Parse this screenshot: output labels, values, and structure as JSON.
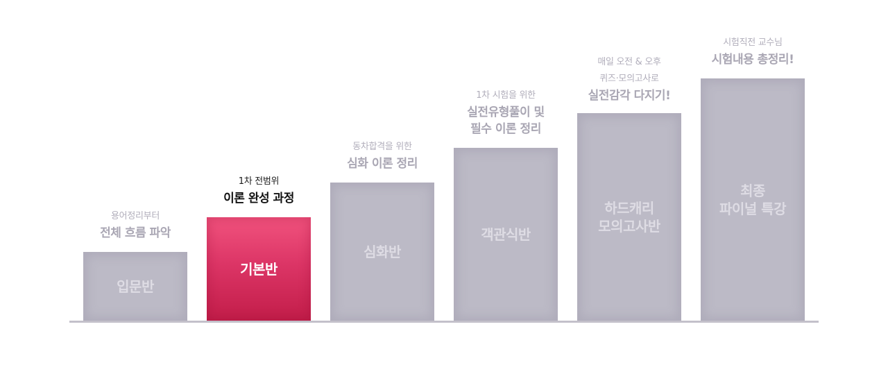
{
  "courses": [
    {
      "label": "입문반",
      "caption_lines": [
        "용어정리부터"
      ],
      "caption_bold": [
        "전체 흐름 파악"
      ],
      "active": false
    },
    {
      "label": "기본반",
      "caption_lines": [
        "1차 전범위"
      ],
      "caption_bold": [
        "이론 완성 과정"
      ],
      "active": true
    },
    {
      "label": "심화반",
      "caption_lines": [
        "동차합격을 위한"
      ],
      "caption_bold": [
        "심화 이론 정리"
      ],
      "active": false
    },
    {
      "label": "객관식반",
      "caption_lines": [
        "1차 시험을 위한"
      ],
      "caption_bold": [
        "실전유형풀이 및",
        "필수 이론 정리"
      ],
      "active": false
    },
    {
      "label": "하드캐리\n모의고사반",
      "caption_lines": [
        "매일 오전 & 오후",
        "퀴즈·모의고사로"
      ],
      "caption_bold": [
        "실전감각 다지기!"
      ],
      "active": false
    },
    {
      "label": "최종\n파이널 특강",
      "caption_lines": [
        "시험직전 교수님"
      ],
      "caption_bold": [
        "시험내용 총정리!"
      ],
      "active": false
    }
  ],
  "colors": {
    "active_bar": "#dc3566",
    "inactive_bar": "#bcbac6",
    "baseline": "#c3c0ca"
  }
}
